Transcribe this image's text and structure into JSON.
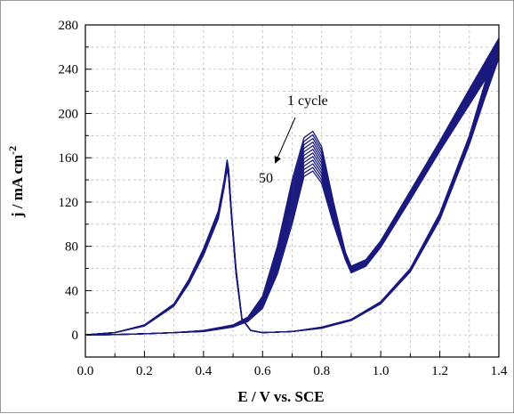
{
  "chart_data": {
    "type": "line",
    "title": "",
    "xlabel": "E / V vs. SCE",
    "ylabel_main": "j / mA cm",
    "ylabel_sup": "-2",
    "xlim": [
      0.0,
      1.4
    ],
    "ylim": [
      -20,
      280
    ],
    "xticks": [
      "0.0",
      "0.2",
      "0.4",
      "0.6",
      "0.8",
      "1.0",
      "1.2",
      "1.4"
    ],
    "yticks": [
      "0",
      "40",
      "80",
      "120",
      "160",
      "200",
      "240",
      "280"
    ],
    "grid": true,
    "line_color": "#1a1a7e",
    "annotations": {
      "first": "1 cycle",
      "last": "50"
    },
    "cycles_drawn": 12,
    "series": [
      {
        "name": "1 cycle",
        "forward": [
          [
            0.0,
            0
          ],
          [
            0.1,
            0.3
          ],
          [
            0.2,
            1
          ],
          [
            0.3,
            2
          ],
          [
            0.4,
            4
          ],
          [
            0.5,
            9
          ],
          [
            0.55,
            16
          ],
          [
            0.6,
            35
          ],
          [
            0.65,
            80
          ],
          [
            0.7,
            140
          ],
          [
            0.74,
            178
          ],
          [
            0.77,
            184
          ],
          [
            0.8,
            170
          ],
          [
            0.84,
            120
          ],
          [
            0.88,
            75
          ],
          [
            0.9,
            62
          ],
          [
            0.95,
            68
          ],
          [
            1.0,
            85
          ],
          [
            1.1,
            130
          ],
          [
            1.2,
            175
          ],
          [
            1.3,
            222
          ],
          [
            1.4,
            268
          ]
        ],
        "reverse": [
          [
            1.4,
            268
          ],
          [
            1.35,
            225
          ],
          [
            1.3,
            180
          ],
          [
            1.2,
            110
          ],
          [
            1.1,
            60
          ],
          [
            1.0,
            30
          ],
          [
            0.9,
            14
          ],
          [
            0.8,
            7
          ],
          [
            0.7,
            3
          ],
          [
            0.6,
            2
          ],
          [
            0.56,
            4
          ],
          [
            0.53,
            15
          ],
          [
            0.51,
            60
          ],
          [
            0.495,
            110
          ],
          [
            0.485,
            150
          ],
          [
            0.48,
            158
          ],
          [
            0.47,
            140
          ],
          [
            0.45,
            112
          ],
          [
            0.4,
            78
          ],
          [
            0.35,
            50
          ],
          [
            0.3,
            28
          ],
          [
            0.2,
            9
          ],
          [
            0.1,
            2
          ],
          [
            0.0,
            0
          ]
        ]
      },
      {
        "name": "50",
        "forward": [
          [
            0.0,
            0
          ],
          [
            0.1,
            0.3
          ],
          [
            0.2,
            1
          ],
          [
            0.3,
            2
          ],
          [
            0.4,
            3
          ],
          [
            0.5,
            7
          ],
          [
            0.55,
            12
          ],
          [
            0.6,
            24
          ],
          [
            0.65,
            55
          ],
          [
            0.7,
            100
          ],
          [
            0.74,
            143
          ],
          [
            0.77,
            148
          ],
          [
            0.8,
            137
          ],
          [
            0.84,
            100
          ],
          [
            0.88,
            68
          ],
          [
            0.9,
            56
          ],
          [
            0.95,
            62
          ],
          [
            1.0,
            79
          ],
          [
            1.1,
            122
          ],
          [
            1.2,
            166
          ],
          [
            1.3,
            208
          ],
          [
            1.4,
            250
          ]
        ],
        "reverse": [
          [
            1.4,
            250
          ],
          [
            1.35,
            212
          ],
          [
            1.3,
            172
          ],
          [
            1.2,
            104
          ],
          [
            1.1,
            57
          ],
          [
            1.0,
            28
          ],
          [
            0.9,
            13
          ],
          [
            0.8,
            6
          ],
          [
            0.7,
            3
          ],
          [
            0.6,
            2
          ],
          [
            0.56,
            4
          ],
          [
            0.53,
            14
          ],
          [
            0.51,
            55
          ],
          [
            0.495,
            105
          ],
          [
            0.485,
            142
          ],
          [
            0.48,
            150
          ],
          [
            0.47,
            133
          ],
          [
            0.45,
            105
          ],
          [
            0.4,
            72
          ],
          [
            0.35,
            46
          ],
          [
            0.3,
            26
          ],
          [
            0.2,
            8
          ],
          [
            0.1,
            2
          ],
          [
            0.0,
            0
          ]
        ]
      }
    ]
  }
}
